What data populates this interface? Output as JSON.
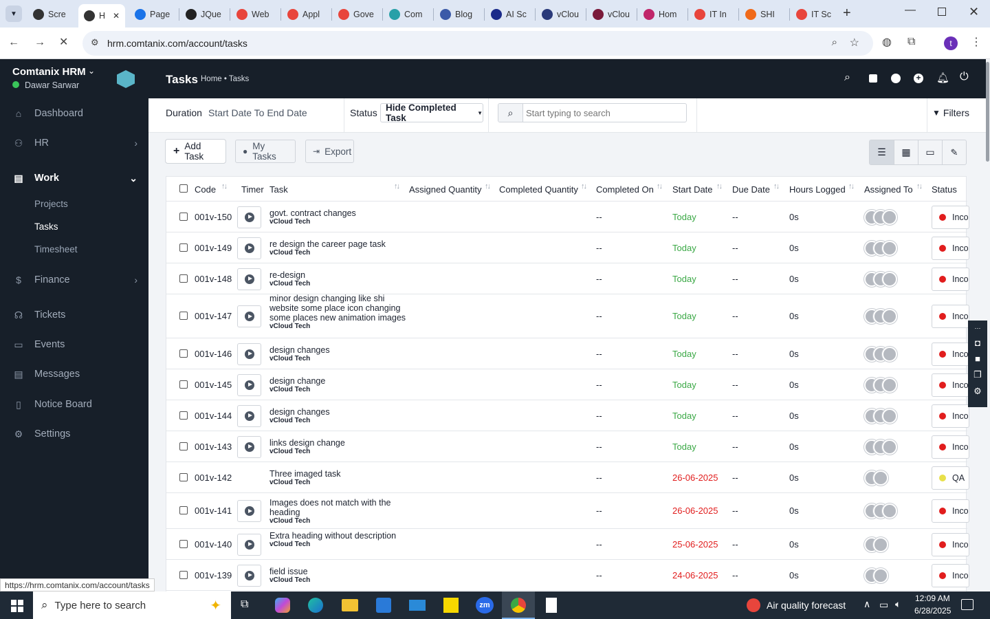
{
  "browser": {
    "tabs": [
      {
        "label": "Scre",
        "color": "#333"
      },
      {
        "label": "H",
        "color": "#333",
        "active": true
      },
      {
        "label": "Page",
        "color": "#1a73e8"
      },
      {
        "label": "JQue",
        "color": "#222"
      },
      {
        "label": "Web",
        "color": "#e8453c"
      },
      {
        "label": "Appl",
        "color": "#e8453c"
      },
      {
        "label": "Gove",
        "color": "#e8453c"
      },
      {
        "label": "Com",
        "color": "#28a0a8"
      },
      {
        "label": "Blog",
        "color": "#3b5aa8"
      },
      {
        "label": "AI Sc",
        "color": "#1a2a8a"
      },
      {
        "label": "vClou",
        "color": "#2a3a7a"
      },
      {
        "label": "vClou",
        "color": "#7a1a3a"
      },
      {
        "label": "Hom",
        "color": "#c0266a"
      },
      {
        "label": "IT In",
        "color": "#e8453c"
      },
      {
        "label": "SHI",
        "color": "#f06a1a"
      },
      {
        "label": "IT Sc",
        "color": "#e8453c"
      }
    ],
    "url": "hrm.comtanix.com/account/tasks",
    "profile_initial": "t",
    "status_url": "https://hrm.comtanix.com/account/tasks"
  },
  "sidebar": {
    "company": "Comtanix HRM",
    "user": "Dawar Sarwar",
    "items": [
      {
        "label": "Dashboard",
        "icon": "home-icon"
      },
      {
        "label": "HR",
        "icon": "users-icon",
        "chevron": "›"
      },
      {
        "label": "Work",
        "icon": "briefcase-icon",
        "chevron": "⌄",
        "active": true
      },
      {
        "label": "Finance",
        "icon": "dollar-icon",
        "chevron": "›"
      },
      {
        "label": "Tickets",
        "icon": "headset-icon"
      },
      {
        "label": "Events",
        "icon": "calendar-icon"
      },
      {
        "label": "Messages",
        "icon": "message-icon"
      },
      {
        "label": "Notice Board",
        "icon": "clipboard-icon"
      },
      {
        "label": "Settings",
        "icon": "gear-icon"
      }
    ],
    "work_sub": [
      "Projects",
      "Tasks",
      "Timesheet"
    ]
  },
  "page": {
    "title": "Tasks",
    "breadcrumb": "Home • Tasks"
  },
  "filters": {
    "duration_label": "Duration",
    "duration_value": "Start Date To End Date",
    "status_label": "Status",
    "status_value": "Hide Completed Task",
    "search_placeholder": "Start typing to search",
    "filters_button": "Filters"
  },
  "actions": {
    "add_task": "Add Task",
    "my_tasks": "My Tasks",
    "export": "Export"
  },
  "table": {
    "headers": [
      "Code",
      "Timer",
      "Task",
      "Assigned Quantity",
      "Completed Quantity",
      "Completed On",
      "Start Date",
      "Due Date",
      "Hours Logged",
      "Assigned To",
      "Status"
    ],
    "rows": [
      {
        "code": "001v-150",
        "task": "govt. contract changes",
        "project": "vCloud Tech",
        "completed_on": "--",
        "start": "Today",
        "due": "--",
        "hours": "0s",
        "avatars": 3,
        "status": "Incomplete",
        "status_color": "#e11d1d",
        "start_color": "#3aa845",
        "timer": true
      },
      {
        "code": "001v-149",
        "task": "re design the career page task",
        "project": "vCloud Tech",
        "completed_on": "--",
        "start": "Today",
        "due": "--",
        "hours": "0s",
        "avatars": 3,
        "status": "Incomplete",
        "status_color": "#e11d1d",
        "start_color": "#3aa845",
        "timer": true
      },
      {
        "code": "001v-148",
        "task": "re-design",
        "project": "vCloud Tech",
        "completed_on": "--",
        "start": "Today",
        "due": "--",
        "hours": "0s",
        "avatars": 3,
        "status": "Incomplete",
        "status_color": "#e11d1d",
        "start_color": "#3aa845",
        "timer": true
      },
      {
        "code": "001v-147",
        "task": "minor design changing like shi website some place icon changing some places new animation images",
        "project": "vCloud Tech",
        "completed_on": "--",
        "start": "Today",
        "due": "--",
        "hours": "0s",
        "avatars": 3,
        "status": "Incomplete",
        "status_color": "#e11d1d",
        "start_color": "#3aa845",
        "timer": true
      },
      {
        "code": "001v-146",
        "task": "design changes",
        "project": "vCloud Tech",
        "completed_on": "--",
        "start": "Today",
        "due": "--",
        "hours": "0s",
        "avatars": 3,
        "status": "Incomplete",
        "status_color": "#e11d1d",
        "start_color": "#3aa845",
        "timer": true
      },
      {
        "code": "001v-145",
        "task": "design change",
        "project": "vCloud Tech",
        "completed_on": "--",
        "start": "Today",
        "due": "--",
        "hours": "0s",
        "avatars": 3,
        "status": "Incomplete",
        "status_color": "#e11d1d",
        "start_color": "#3aa845",
        "timer": true
      },
      {
        "code": "001v-144",
        "task": "design changes",
        "project": "vCloud Tech",
        "completed_on": "--",
        "start": "Today",
        "due": "--",
        "hours": "0s",
        "avatars": 3,
        "status": "Incomplete",
        "status_color": "#e11d1d",
        "start_color": "#3aa845",
        "timer": true
      },
      {
        "code": "001v-143",
        "task": "links design change",
        "project": "vCloud Tech",
        "completed_on": "--",
        "start": "Today",
        "due": "--",
        "hours": "0s",
        "avatars": 3,
        "status": "Incomplete",
        "status_color": "#e11d1d",
        "start_color": "#3aa845",
        "timer": true
      },
      {
        "code": "001v-142",
        "task": "Three imaged task",
        "project": "vCloud Tech",
        "completed_on": "--",
        "start": "26-06-2025",
        "due": "--",
        "hours": "0s",
        "avatars": 2,
        "status": "QA",
        "status_color": "#e8e04a",
        "start_color": "#e11d1d",
        "timer": false
      },
      {
        "code": "001v-141",
        "task": "Images does not match with the heading",
        "project": "vCloud Tech",
        "completed_on": "--",
        "start": "26-06-2025",
        "due": "--",
        "hours": "0s",
        "avatars": 3,
        "status": "Incomplete",
        "status_color": "#e11d1d",
        "start_color": "#e11d1d",
        "timer": true
      },
      {
        "code": "001v-140",
        "task": "Extra heading without description",
        "project": "vCloud Tech",
        "completed_on": "--",
        "start": "25-06-2025",
        "due": "--",
        "hours": "0s",
        "avatars": 2,
        "status": "Incomplete",
        "status_color": "#e11d1d",
        "start_color": "#e11d1d",
        "timer": true
      },
      {
        "code": "001v-139",
        "task": "field issue",
        "project": "vCloud Tech",
        "completed_on": "--",
        "start": "24-06-2025",
        "due": "--",
        "hours": "0s",
        "avatars": 2,
        "status": "Incomplete",
        "status_color": "#e11d1d",
        "start_color": "#e11d1d",
        "timer": true
      }
    ]
  },
  "taskbar": {
    "search_placeholder": "Type here to search",
    "weather": "Air quality forecast",
    "time": "12:09 AM",
    "date": "6/28/2025"
  }
}
